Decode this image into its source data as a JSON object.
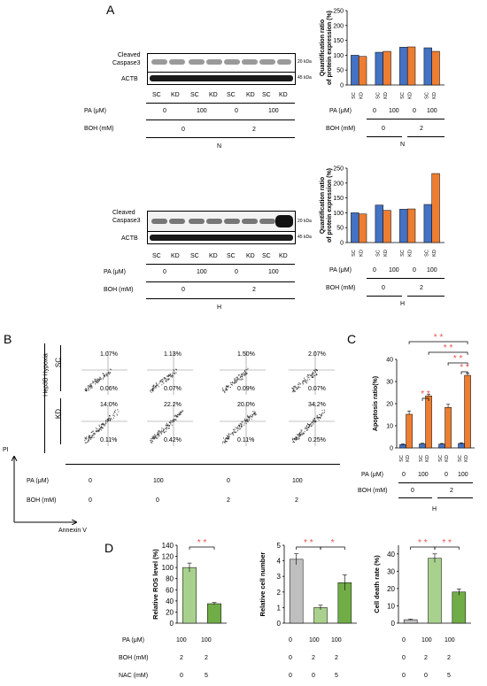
{
  "panels": {
    "A": "A",
    "B": "B",
    "C": "C",
    "D": "D"
  },
  "colors": {
    "sc": "#4472c4",
    "kd": "#ed7d31",
    "sig": "#e8504a",
    "gray": "#bfbfbf",
    "green_light": "#a9d18e",
    "green_dark": "#70ad47"
  },
  "blots": {
    "cleaved": "Cleaved\nCaspase3",
    "actb": "ACTB",
    "kda20": "20 kDa",
    "kda45": "45 kDa",
    "lanes": [
      "SC",
      "KD",
      "SC",
      "KD",
      "SC",
      "KD",
      "SC",
      "KD"
    ]
  },
  "treat": {
    "pa_label": "PA (μM)",
    "boh_label": "BOH (mM)",
    "nac_label": "NAC (mM)",
    "pa_vals": [
      "0",
      "100",
      "0",
      "100"
    ],
    "boh_vals": [
      "0",
      "2"
    ],
    "cond_n": "N",
    "cond_h": "H"
  },
  "flow": {
    "sc_label": "SC",
    "kd_label": "KD",
    "cell_label": "Hep3B Hypoxia",
    "y_axis": "PI",
    "x_axis": "Annexin V",
    "sc_upper": [
      "1.07%",
      "1.13%",
      "1.50%",
      "2.07%"
    ],
    "sc_lower": [
      "0.06%",
      "0.07%",
      "0.09%",
      "0.07%"
    ],
    "kd_upper": [
      "14.0%",
      "22.2%",
      "20.0%",
      "34.2%"
    ],
    "kd_lower": [
      "0.11%",
      "0.42%",
      "0.11%",
      "0.25%"
    ],
    "pa_vals": [
      "0",
      "100",
      "0",
      "100"
    ],
    "boh_vals": [
      "0",
      "0",
      "2",
      "2"
    ]
  },
  "sig": "* *",
  "sig1": "*",
  "chart_data": [
    {
      "type": "bar",
      "ylabel": "Quantification ratio\nof protein expression (%)",
      "ylim": [
        0,
        250
      ],
      "yticks": [
        0,
        50,
        100,
        150,
        200,
        250
      ],
      "categories": [
        "0",
        "100",
        "0",
        "100"
      ],
      "series": [
        {
          "name": "SC",
          "values": [
            100,
            110,
            127,
            125
          ]
        },
        {
          "name": "KD",
          "values": [
            96,
            113,
            128,
            113
          ]
        }
      ]
    },
    {
      "type": "bar",
      "ylabel": "Quantification ratio\nof protein expression (%)",
      "ylim": [
        0,
        250
      ],
      "yticks": [
        0,
        50,
        100,
        150,
        200,
        250
      ],
      "categories": [
        "0",
        "100",
        "0",
        "100"
      ],
      "series": [
        {
          "name": "SC",
          "values": [
            100,
            126,
            112,
            128
          ]
        },
        {
          "name": "KD",
          "values": [
            96,
            108,
            113,
            232
          ]
        }
      ]
    },
    {
      "type": "bar",
      "ylabel": "Apoptosis ratio(%)",
      "ylim": [
        0,
        40
      ],
      "yticks": [
        0,
        10,
        20,
        30,
        40
      ],
      "categories": [
        "0",
        "100",
        "0",
        "100"
      ],
      "series": [
        {
          "name": "SC",
          "values": [
            1.5,
            1.8,
            1.7,
            2.0
          ]
        },
        {
          "name": "KD",
          "values": [
            15.2,
            23.5,
            18.3,
            32.8
          ]
        }
      ]
    },
    {
      "type": "bar",
      "ylabel": "Relative ROS level (%)",
      "ylim": [
        0,
        140
      ],
      "yticks": [
        0,
        20,
        40,
        60,
        80,
        100,
        120,
        140
      ],
      "values": [
        100,
        35
      ],
      "pa": [
        "100",
        "100"
      ],
      "boh": [
        "2",
        "2"
      ],
      "nac": [
        "0",
        "5"
      ]
    },
    {
      "type": "bar",
      "ylabel": "Relative cell number",
      "ylim": [
        0,
        5
      ],
      "yticks": [
        0,
        1,
        2,
        3,
        4,
        5
      ],
      "values": [
        4.1,
        1.0,
        2.6
      ],
      "pa": [
        "0",
        "100",
        "100"
      ],
      "boh": [
        "0",
        "2",
        "2"
      ],
      "nac": [
        "0",
        "0",
        "5"
      ]
    },
    {
      "type": "bar",
      "ylabel": "Cell death rate (%)",
      "ylim": [
        0,
        45
      ],
      "yticks": [
        0,
        10,
        20,
        30,
        40
      ],
      "values": [
        2,
        37.5,
        18
      ],
      "pa": [
        "0",
        "100",
        "100"
      ],
      "boh": [
        "0",
        "2",
        "2"
      ],
      "nac": [
        "0",
        "0",
        "5"
      ]
    }
  ]
}
